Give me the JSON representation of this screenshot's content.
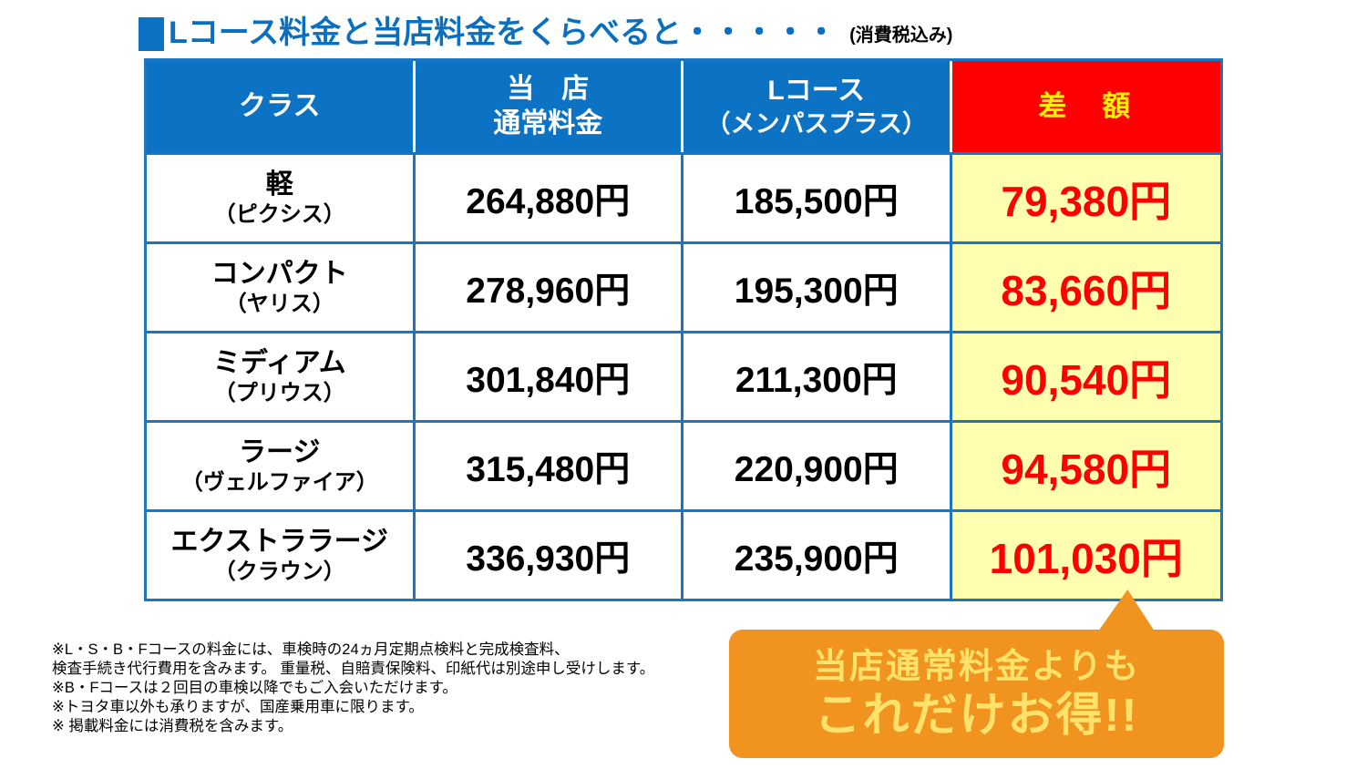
{
  "page": {
    "title": "Lコース料金と当店料金をくらべると・・・・・",
    "tax_note": "(消費税込み)"
  },
  "table": {
    "headers": {
      "class_label": "クラス",
      "shop_line1": "当　店",
      "shop_line2": "通常料金",
      "lcourse_line1": "Lコース",
      "lcourse_line2": "（メンパスプラス）",
      "diff_label": "差　額"
    },
    "rows": [
      {
        "name": "軽",
        "sub": "（ピクシス）",
        "shop_price": "264,880円",
        "lcourse_price": "185,500円",
        "diff": "79,380円"
      },
      {
        "name": "コンパクト",
        "sub": "（ヤリス）",
        "shop_price": "278,960円",
        "lcourse_price": "195,300円",
        "diff": "83,660円"
      },
      {
        "name": "ミディアム",
        "sub": "（プリウス）",
        "shop_price": "301,840円",
        "lcourse_price": "211,300円",
        "diff": "90,540円"
      },
      {
        "name": "ラージ",
        "sub": "（ヴェルファイア）",
        "shop_price": "315,480円",
        "lcourse_price": "220,900円",
        "diff": "94,580円"
      },
      {
        "name": "エクストララージ",
        "sub": "（クラウン）",
        "shop_price": "336,930円",
        "lcourse_price": "235,900円",
        "diff": "101,030円"
      }
    ]
  },
  "notes": {
    "lines": [
      "※L・S・B・Fコースの料金には、車検時の24ヵ月定期点検料と完成検査料、",
      "検査手続き代行費用を含みます。 重量税、自賠責保険料、印紙代は別途申し受けします。",
      "※B・Fコースは２回目の車検以降でもご入会いただけます。",
      "※トヨタ車以外も承りますが、国産乗用車に限ります。",
      "※ 掲載料金には消費税を含みます。"
    ]
  },
  "callout": {
    "line1": "当店通常料金よりも",
    "line2": "これだけお得!!"
  },
  "colors": {
    "header_blue": "#0B72C4",
    "border_blue": "#1B75C2",
    "title_blue": "#0B6FBF",
    "diff_red": "#FF0000",
    "diff_header_yellow": "#FFF100",
    "diff_cell_yellow": "#FFFFB0",
    "callout_orange": "#F0931F",
    "callout_text_yellow": "#FFE26A"
  }
}
